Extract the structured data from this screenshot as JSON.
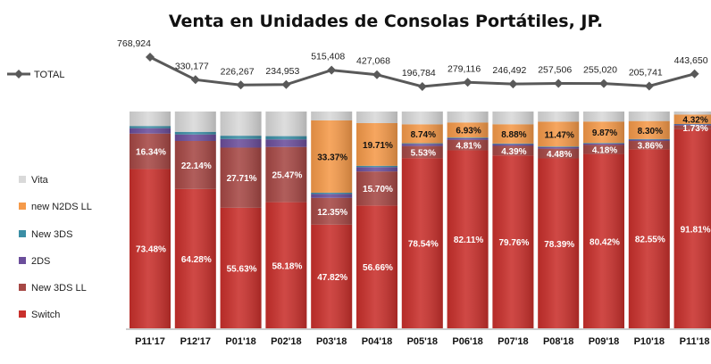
{
  "chart_data": {
    "type": "bar",
    "title": "Venta en Unidades de Consolas Portátiles, JP.",
    "categories": [
      "P11'17",
      "P12'17",
      "P01'18",
      "P02'18",
      "P03'18",
      "P04'18",
      "P05'18",
      "P06'18",
      "P07'18",
      "P08'18",
      "P09'18",
      "P10'18",
      "P11'18"
    ],
    "stack_order": [
      "Switch",
      "New 3DS LL",
      "2DS",
      "New 3DS",
      "new N2DS LL",
      "Vita"
    ],
    "legend_order": [
      "Vita",
      "new N2DS LL",
      "New 3DS",
      "2DS",
      "New 3DS LL",
      "Switch"
    ],
    "colors": {
      "Switch": "#c9302c",
      "New 3DS LL": "#a64845",
      "2DS": "#6b4e9b",
      "New 3DS": "#3b8ea5",
      "new N2DS LL": "#f59a4a",
      "Vita": "#d9d9d9",
      "TOTAL": "#595959"
    },
    "series": [
      {
        "name": "Switch",
        "values": [
          73.48,
          64.28,
          55.63,
          58.18,
          47.82,
          56.66,
          78.54,
          82.11,
          79.76,
          78.39,
          80.42,
          82.55,
          91.81
        ],
        "labels": [
          "73.48%",
          "64.28%",
          "55.63%",
          "58.18%",
          "47.82%",
          "56.66%",
          "78.54%",
          "82.11%",
          "79.76%",
          "78.39%",
          "80.42%",
          "82.55%",
          "91.81%"
        ]
      },
      {
        "name": "New 3DS LL",
        "values": [
          16.34,
          22.14,
          27.71,
          25.47,
          12.35,
          15.7,
          5.53,
          4.81,
          4.39,
          4.48,
          4.18,
          3.86,
          1.73
        ],
        "labels": [
          "16.34%",
          "22.14%",
          "27.71%",
          "25.47%",
          "12.35%",
          "15.70%",
          "5.53%",
          "4.81%",
          "4.39%",
          "4.48%",
          "4.18%",
          "3.86%",
          "1.73%"
        ]
      },
      {
        "name": "2DS",
        "values": [
          2.5,
          3.0,
          4.0,
          3.5,
          1.8,
          2.0,
          1.0,
          0.8,
          0.8,
          0.7,
          0.6,
          0.6,
          0.5
        ],
        "labels": [
          "",
          "",
          "",
          "",
          "",
          "",
          "",
          "",
          "",
          "",
          "",
          "",
          ""
        ]
      },
      {
        "name": "New 3DS",
        "values": [
          1.0,
          1.2,
          1.5,
          1.5,
          0.6,
          0.6,
          0.3,
          0.3,
          0.3,
          0.3,
          0.3,
          0.3,
          0.2
        ],
        "labels": [
          "",
          "",
          "",
          "",
          "",
          "",
          "",
          "",
          "",
          "",
          "",
          "",
          ""
        ]
      },
      {
        "name": "new N2DS LL",
        "values": [
          0,
          0,
          0,
          0,
          33.37,
          19.71,
          8.74,
          6.93,
          8.88,
          11.47,
          9.87,
          8.3,
          4.32
        ],
        "labels": [
          "",
          "",
          "",
          "",
          "33.37%",
          "19.71%",
          "8.74%",
          "6.93%",
          "8.88%",
          "11.47%",
          "9.87%",
          "8.30%",
          "4.32%"
        ]
      },
      {
        "name": "Vita",
        "values": [
          6.68,
          9.38,
          11.16,
          11.35,
          4.06,
          5.33,
          5.89,
          5.05,
          5.87,
          4.66,
          4.63,
          4.39,
          1.44
        ],
        "labels": [
          "",
          "",
          "",
          "",
          "",
          "",
          "",
          "",
          "",
          "",
          "",
          "",
          ""
        ]
      }
    ],
    "total_series": {
      "name": "TOTAL",
      "values": [
        768924,
        330177,
        226267,
        234953,
        515408,
        427068,
        196784,
        279116,
        246492,
        257506,
        255020,
        205741,
        443650
      ],
      "labels": [
        "768,924",
        "330,177",
        "226,267",
        "234,953",
        "515,408",
        "427,068",
        "196,784",
        "279,116",
        "246,492",
        "257,506",
        "255,020",
        "205,741",
        "443,650"
      ]
    },
    "ylim": [
      0,
      100
    ],
    "legend_position": "left",
    "grid": false
  }
}
